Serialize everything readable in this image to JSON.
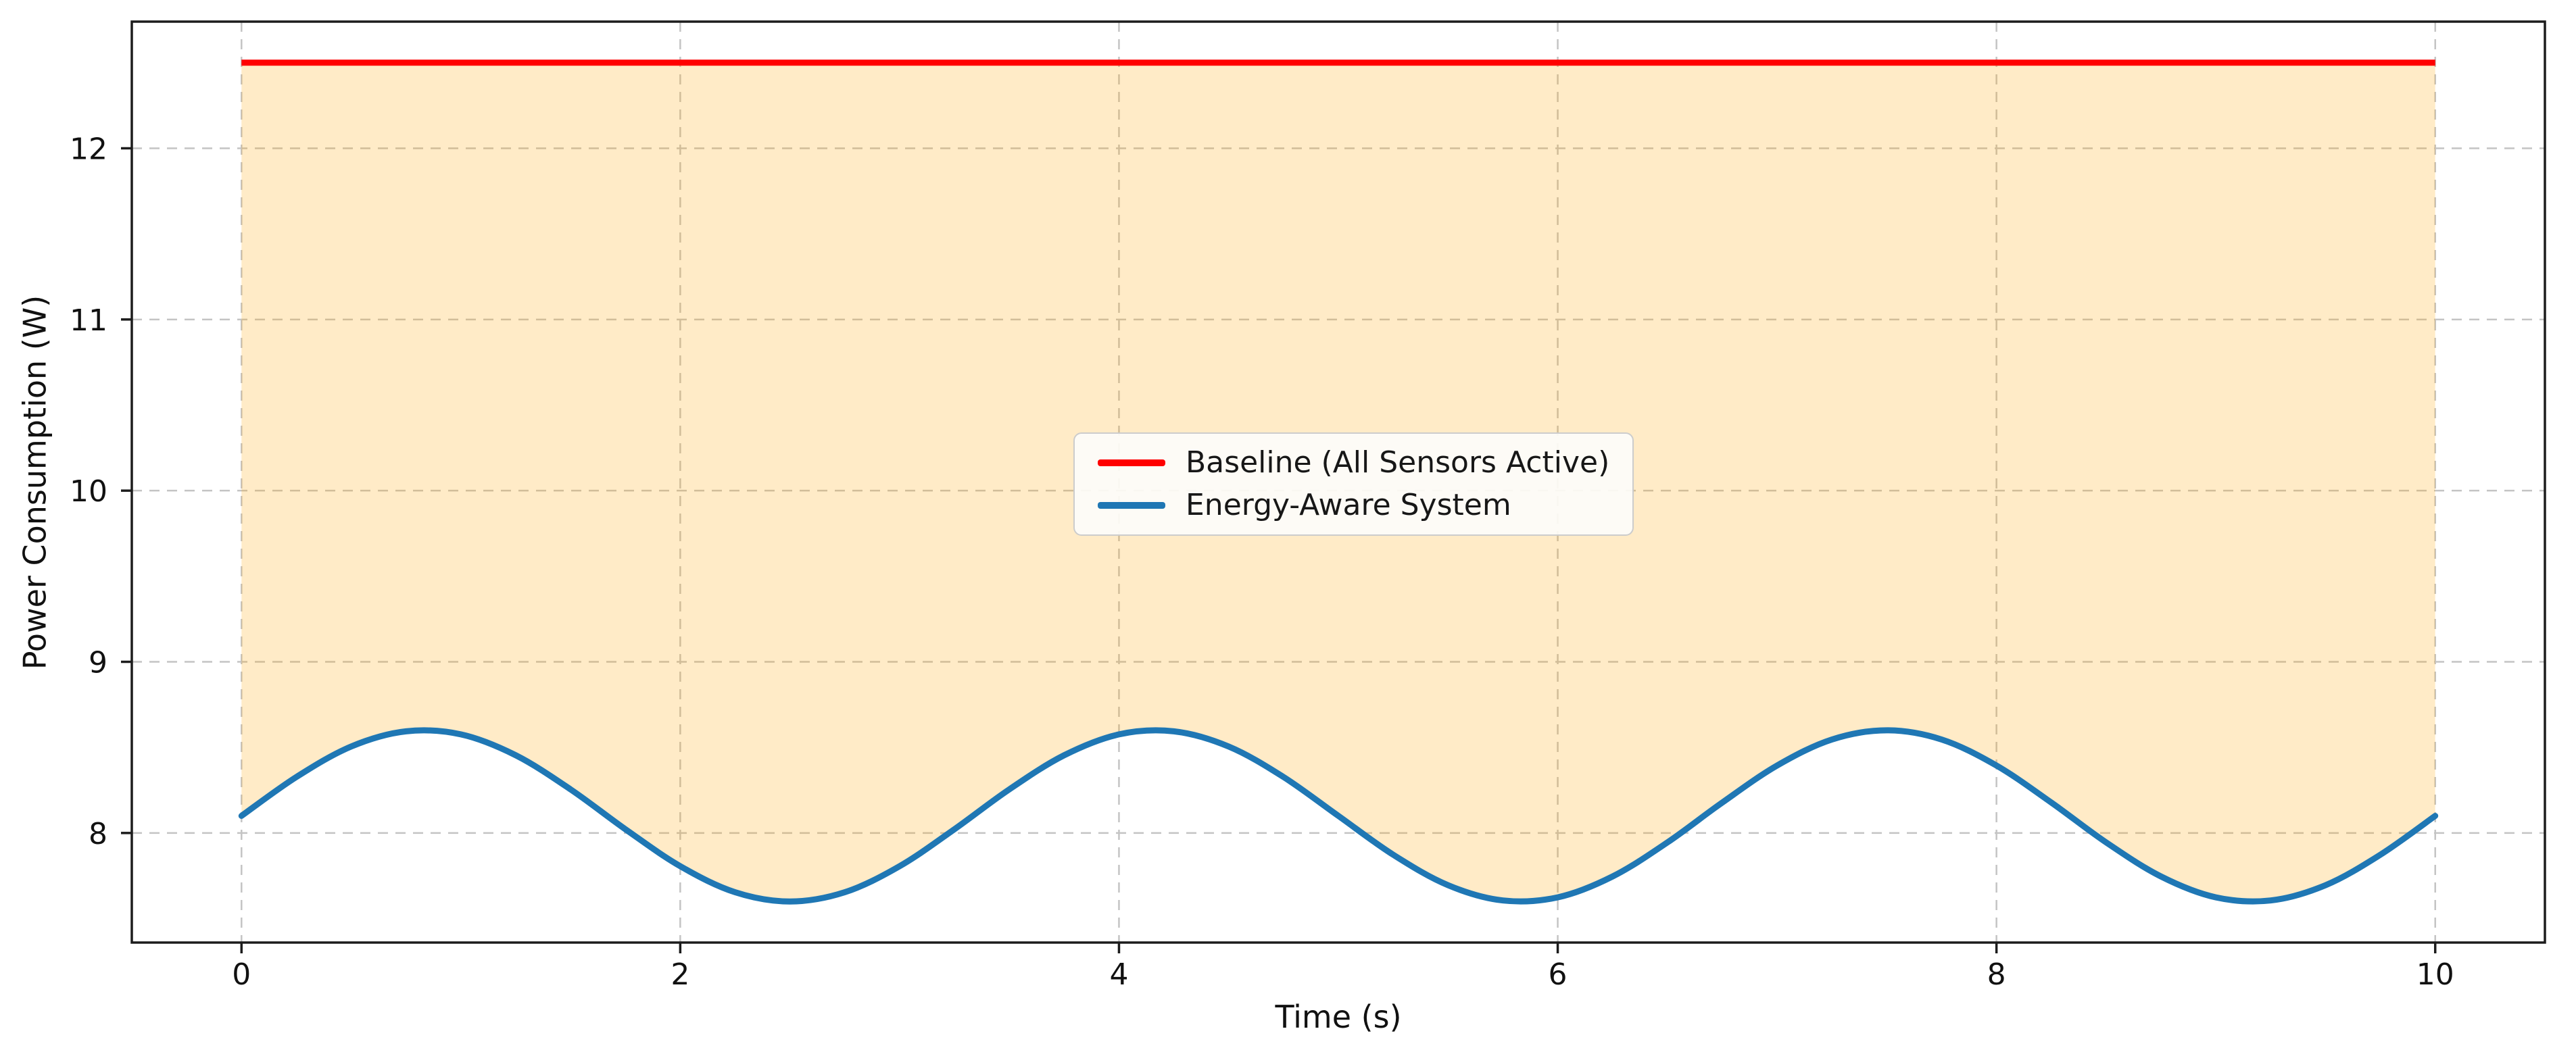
{
  "chart_data": {
    "type": "line",
    "title": "",
    "xlabel": "Time (s)",
    "ylabel": "Power Consumption (W)",
    "xlim": [
      -0.5,
      10.5
    ],
    "ylim": [
      7.36,
      12.74
    ],
    "xticks": [
      "0",
      "2",
      "4",
      "6",
      "8",
      "10"
    ],
    "xtick_values": [
      0,
      2,
      4,
      6,
      8,
      10
    ],
    "yticks": [
      "8",
      "9",
      "10",
      "11",
      "12"
    ],
    "ytick_values": [
      8,
      9,
      10,
      11,
      12
    ],
    "grid": {
      "show": true,
      "linestyle": "dashed",
      "color": "#c4c4c4"
    },
    "axis_color": "#1c1c1c",
    "tick_color": "#1c1c1c",
    "legend": {
      "location": "center"
    },
    "x": [
      0,
      0.25,
      0.5,
      0.75,
      1,
      1.25,
      1.5,
      1.75,
      2,
      2.25,
      2.5,
      2.75,
      3,
      3.25,
      3.5,
      3.75,
      4,
      4.25,
      4.5,
      4.75,
      5,
      5.25,
      5.5,
      5.75,
      6,
      6.25,
      6.5,
      6.75,
      7,
      7.25,
      7.5,
      7.75,
      8,
      8.25,
      8.5,
      8.75,
      9,
      9.25,
      9.5,
      9.75,
      10
    ],
    "series": [
      {
        "name": "Baseline (All Sensors Active)",
        "color": "#ff0000",
        "style": "hline",
        "value": 12.5,
        "xspan": [
          0,
          10
        ],
        "linewidth": 9
      },
      {
        "name": "Energy-Aware System",
        "color": "#1f77b4",
        "style": "curve",
        "linewidth": 9,
        "values": [
          8.1,
          8.327,
          8.505,
          8.594,
          8.576,
          8.454,
          8.255,
          8.022,
          7.806,
          7.654,
          7.6,
          7.654,
          7.806,
          8.022,
          8.255,
          8.454,
          8.576,
          8.594,
          8.505,
          8.327,
          8.1,
          7.873,
          7.695,
          7.606,
          7.624,
          7.746,
          7.945,
          8.178,
          8.394,
          8.546,
          8.6,
          8.546,
          8.394,
          8.178,
          7.945,
          7.746,
          7.624,
          7.606,
          7.695,
          7.873,
          8.1
        ]
      }
    ],
    "fill_between": {
      "lower": "Energy-Aware System",
      "upper": "Baseline (All Sensors Active)",
      "color": "#ffa500",
      "alpha": 0.22
    }
  }
}
